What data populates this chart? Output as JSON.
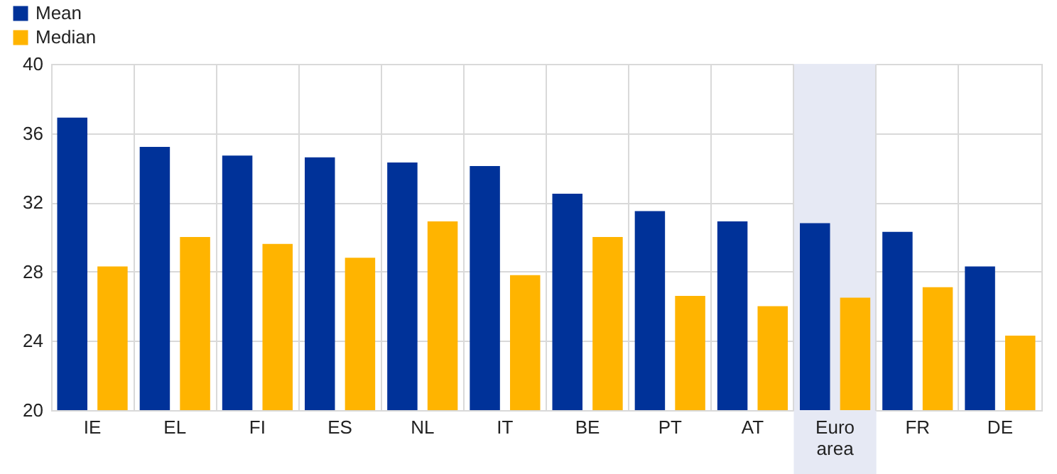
{
  "chart_data": {
    "type": "bar",
    "categories": [
      "IE",
      "EL",
      "FI",
      "ES",
      "NL",
      "IT",
      "BE",
      "PT",
      "AT",
      "Euro area",
      "FR",
      "DE"
    ],
    "series": [
      {
        "name": "Mean",
        "color": "#003299",
        "values": [
          36.9,
          35.2,
          34.7,
          34.6,
          34.3,
          34.1,
          32.5,
          31.5,
          30.9,
          30.8,
          30.3,
          28.3
        ]
      },
      {
        "name": "Median",
        "color": "#ffb400",
        "values": [
          28.3,
          30.0,
          29.6,
          28.8,
          30.9,
          27.8,
          30.0,
          26.6,
          26.0,
          26.5,
          27.1,
          24.3
        ]
      }
    ],
    "ylim": [
      20,
      40
    ],
    "yticks": [
      20,
      24,
      28,
      32,
      36,
      40
    ],
    "bands": [
      {
        "axis": "x",
        "from": "Euro area",
        "to": "Euro area",
        "color": "#e6e9f4"
      }
    ],
    "grid": true,
    "legend": "top left"
  }
}
